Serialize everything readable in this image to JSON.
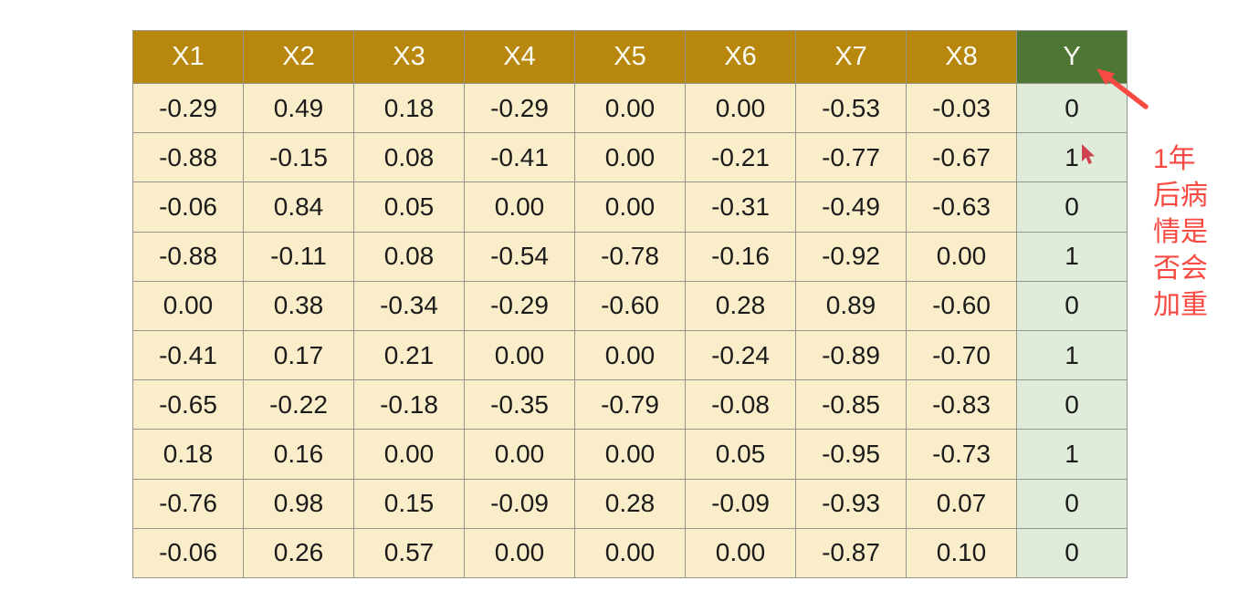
{
  "chart_data": {
    "type": "table",
    "columns": [
      "X1",
      "X2",
      "X3",
      "X4",
      "X5",
      "X6",
      "X7",
      "X8",
      "Y"
    ],
    "rows": [
      [
        "-0.29",
        "0.49",
        "0.18",
        "-0.29",
        "0.00",
        "0.00",
        "-0.53",
        "-0.03",
        "0"
      ],
      [
        "-0.88",
        "-0.15",
        "0.08",
        "-0.41",
        "0.00",
        "-0.21",
        "-0.77",
        "-0.67",
        "1"
      ],
      [
        "-0.06",
        "0.84",
        "0.05",
        "0.00",
        "0.00",
        "-0.31",
        "-0.49",
        "-0.63",
        "0"
      ],
      [
        "-0.88",
        "-0.11",
        "0.08",
        "-0.54",
        "-0.78",
        "-0.16",
        "-0.92",
        "0.00",
        "1"
      ],
      [
        "0.00",
        "0.38",
        "-0.34",
        "-0.29",
        "-0.60",
        "0.28",
        "0.89",
        "-0.60",
        "0"
      ],
      [
        "-0.41",
        "0.17",
        "0.21",
        "0.00",
        "0.00",
        "-0.24",
        "-0.89",
        "-0.70",
        "1"
      ],
      [
        "-0.65",
        "-0.22",
        "-0.18",
        "-0.35",
        "-0.79",
        "-0.08",
        "-0.85",
        "-0.83",
        "0"
      ],
      [
        "0.18",
        "0.16",
        "0.00",
        "0.00",
        "0.00",
        "0.05",
        "-0.95",
        "-0.73",
        "1"
      ],
      [
        "-0.76",
        "0.98",
        "0.15",
        "-0.09",
        "0.28",
        "-0.09",
        "-0.93",
        "0.07",
        "0"
      ],
      [
        "-0.06",
        "0.26",
        "0.57",
        "0.00",
        "0.00",
        "0.00",
        "-0.87",
        "0.10",
        "0"
      ]
    ],
    "highlighted_column": "Y"
  },
  "annotation": {
    "full_text": "1年后病情是否会加重",
    "lines": [
      "1年",
      "后病",
      "情是",
      "否会",
      "加重"
    ]
  },
  "colors": {
    "page_bg": "#ffffff",
    "header_bg": "#b8870e",
    "header_text": "#fdfdf6",
    "y_header_bg": "#4e7635",
    "cell_bg": "#faeeca",
    "y_cell_bg": "#dfecd9",
    "border": "#95958b",
    "cell_text": "#1b1b1b",
    "annotation_red": "#f84a42",
    "cursor_red": "#cf4250"
  }
}
